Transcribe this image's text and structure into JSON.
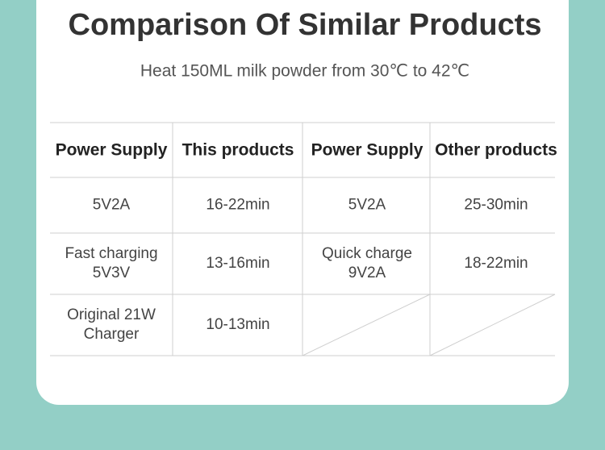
{
  "header": {
    "title": "Comparison Of Similar Products",
    "subtitle": "Heat 150ML milk powder from 30℃ to 42℃"
  },
  "table": {
    "columns": [
      "Power Supply",
      "This products",
      "Power Supply",
      "Other products"
    ],
    "rows": [
      [
        "5V2A",
        "16-22min",
        "5V2A",
        "25-30min"
      ],
      [
        [
          "Fast charging",
          "5V3V"
        ],
        "13-16min",
        [
          "Quick charge",
          "9V2A"
        ],
        "18-22min"
      ],
      [
        [
          "Original 21W",
          "Charger"
        ],
        "10-13min",
        null,
        null
      ]
    ]
  }
}
